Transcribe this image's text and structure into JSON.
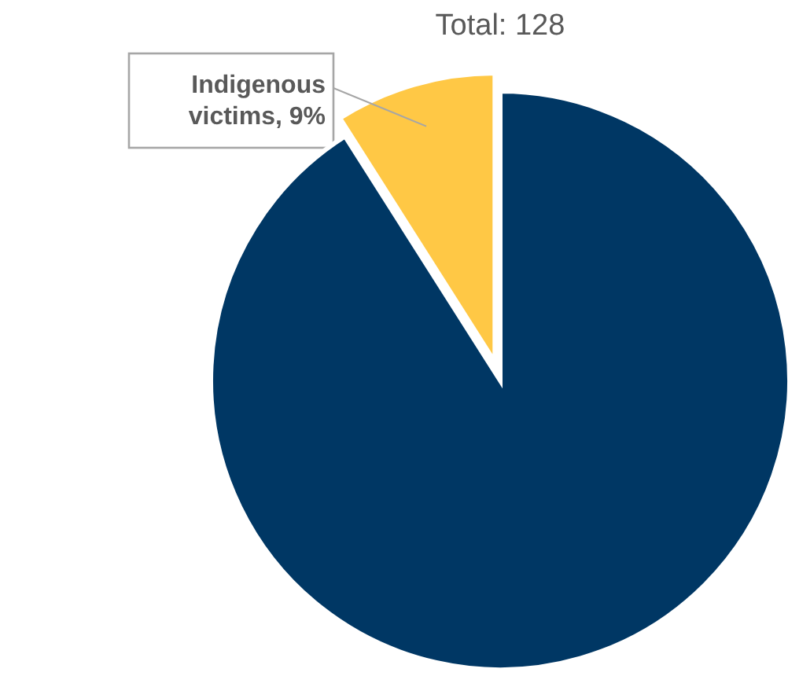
{
  "chart_data": {
    "type": "pie",
    "title": "Total: 128",
    "categories": [
      "Indigenous victims",
      null
    ],
    "values": [
      9,
      91
    ],
    "value_labels": [
      "9%",
      null
    ],
    "colors": [
      "#ffc845",
      "#003764"
    ]
  }
}
